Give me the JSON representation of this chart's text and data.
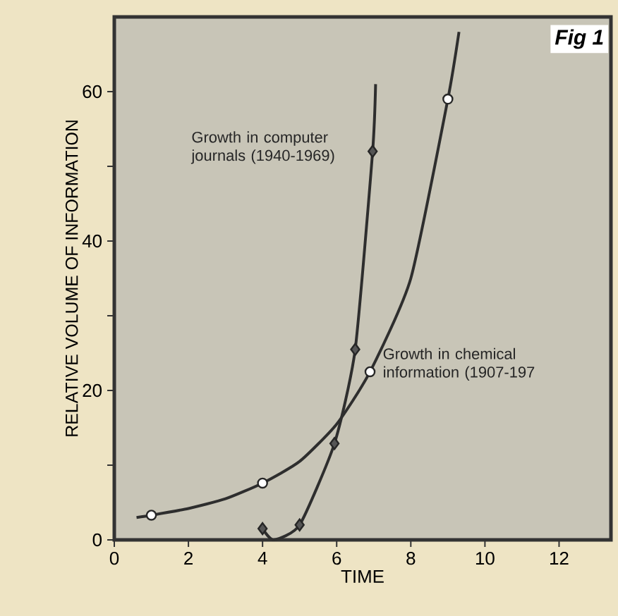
{
  "chart_data": {
    "type": "line",
    "title": "Fig 1",
    "xlabel": "TIME",
    "ylabel": "RELATIVE VOLUME OF INFORMATION",
    "xlim": [
      0,
      13.4
    ],
    "ylim": [
      0,
      70
    ],
    "xticks": [
      0,
      2,
      4,
      6,
      8,
      10,
      12
    ],
    "yticks": [
      0,
      {
        "value": 10,
        "label": null
      },
      20,
      {
        "value": 30,
        "label": null
      },
      40,
      {
        "value": 50,
        "label": null
      },
      60
    ],
    "series": [
      {
        "marker": "none",
        "color": "#2e2e2e",
        "x": [
          0.6,
          1,
          2,
          3,
          4,
          5,
          6,
          6.9,
          8,
          9,
          9.3
        ],
        "values": [
          3,
          3.3,
          4.2,
          5.5,
          7.6,
          10.5,
          15.5,
          22.5,
          35,
          59,
          68
        ]
      },
      {
        "marker": "none",
        "color": "#2e2e2e",
        "x": [
          4,
          4.3,
          5,
          5.94,
          6.5,
          6.97,
          7.05
        ],
        "values": [
          1.5,
          0,
          2,
          12.9,
          25.5,
          52,
          61
        ]
      },
      {
        "type": "scatter",
        "marker": "circle",
        "color": "#ffffff",
        "x": [
          1,
          4,
          6.9,
          9
        ],
        "values": [
          3.3,
          7.6,
          22.5,
          59
        ]
      },
      {
        "type": "scatter",
        "marker": "diamond",
        "color": "#555555",
        "x": [
          4,
          5,
          5.94,
          6.5,
          6.97
        ],
        "values": [
          1.5,
          2,
          12.9,
          25.5,
          52
        ]
      }
    ],
    "annotations": [
      {
        "text": "Growth in computer journals (1940-1969)",
        "x": 6.97,
        "y": 52
      },
      {
        "text": "Growth in chemical information (1907-197",
        "x": 6.9,
        "y": 22.5
      }
    ]
  }
}
